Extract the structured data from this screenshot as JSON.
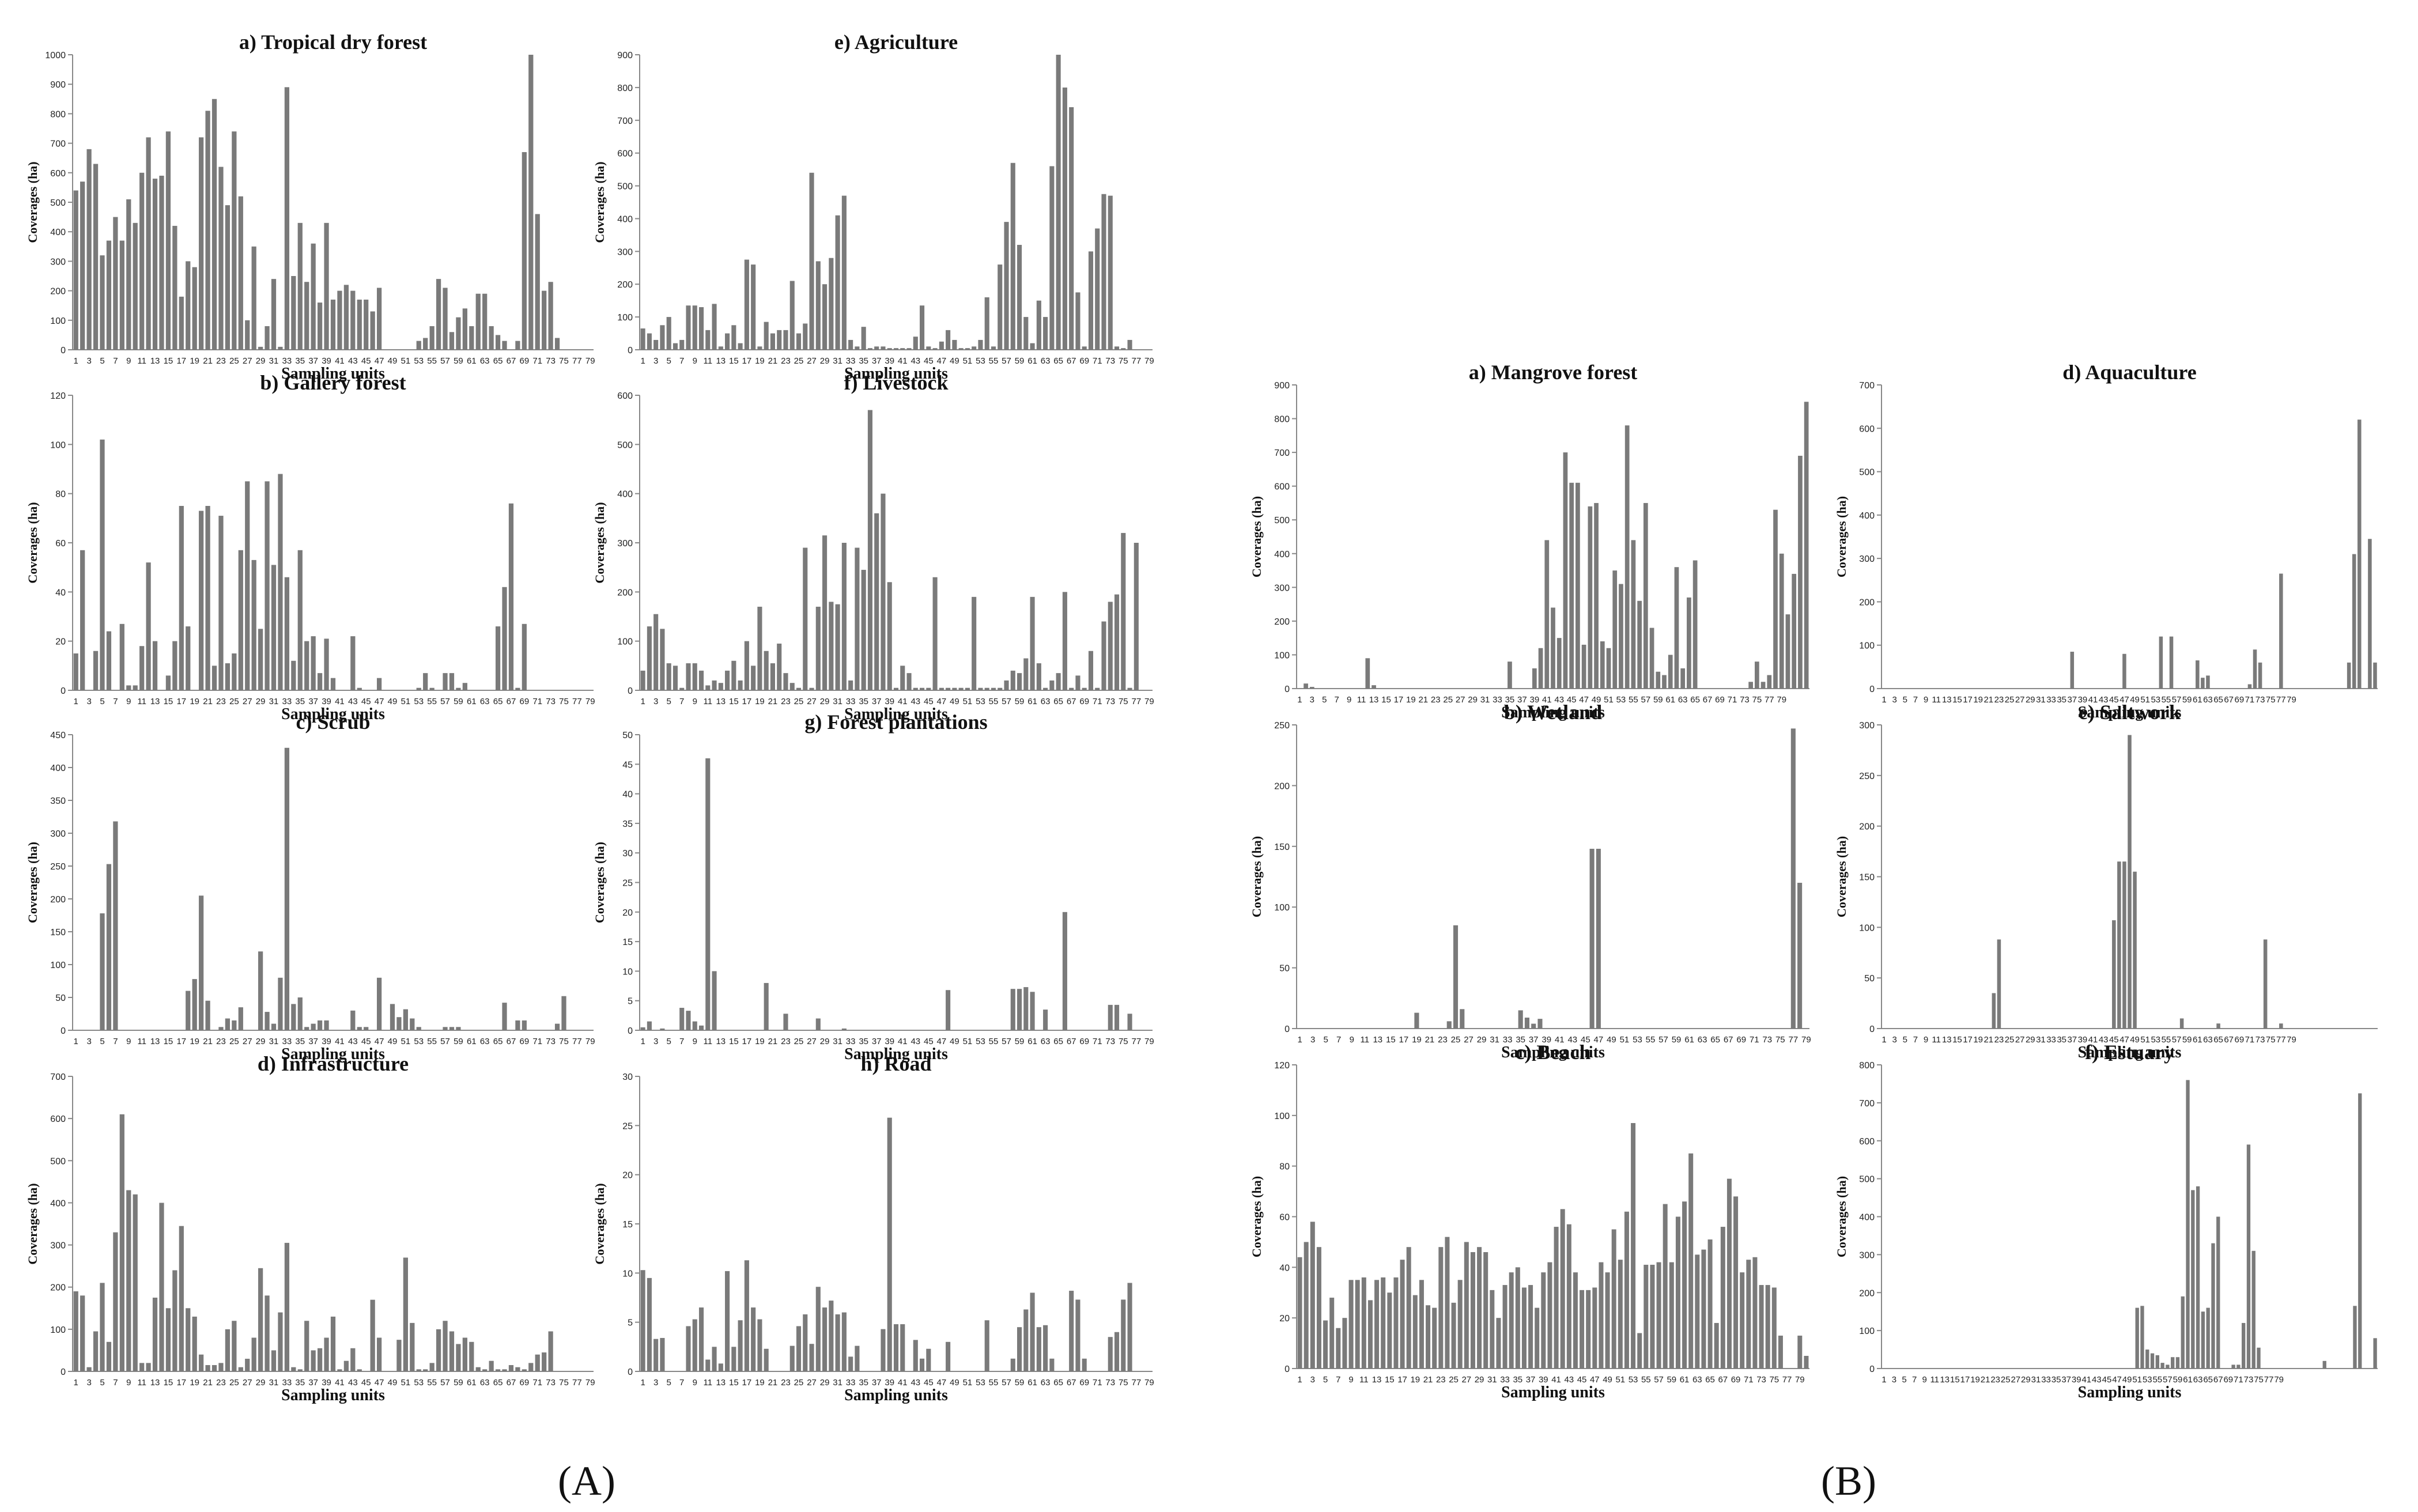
{
  "figure": {
    "panel_labels": [
      "(A)",
      "(B)"
    ],
    "bar_color": "#7a7a7a"
  },
  "chart_data": [
    {
      "id": "A-a",
      "type": "bar",
      "title": "a) Tropical dry forest",
      "xlabel": "Sampling units",
      "ylabel": "Coverages (ha)",
      "ylim": [
        0,
        1000
      ],
      "yticks": [
        0,
        100,
        200,
        300,
        400,
        500,
        600,
        700,
        800,
        900,
        1000
      ],
      "values": [
        540,
        570,
        680,
        630,
        320,
        370,
        450,
        370,
        510,
        430,
        600,
        720,
        580,
        590,
        740,
        420,
        180,
        300,
        280,
        720,
        810,
        850,
        620,
        490,
        740,
        520,
        100,
        350,
        10,
        80,
        240,
        10,
        890,
        250,
        430,
        230,
        360,
        160,
        430,
        170,
        200,
        220,
        200,
        170,
        170,
        130,
        210,
        0,
        0,
        0,
        0,
        0,
        30,
        40,
        80,
        240,
        210,
        60,
        110,
        140,
        80,
        190,
        190,
        80,
        50,
        30,
        0,
        30,
        670,
        1000,
        460,
        200,
        230,
        40,
        0,
        0,
        0,
        0,
        0
      ]
    },
    {
      "id": "A-b",
      "type": "bar",
      "title": "b) Gallery forest",
      "xlabel": "Sampling units",
      "ylabel": "Coverages (ha)",
      "ylim": [
        0,
        120
      ],
      "yticks": [
        0,
        20,
        40,
        60,
        80,
        100,
        120
      ],
      "values": [
        15,
        57,
        0,
        16,
        102,
        24,
        0,
        27,
        2,
        2,
        18,
        52,
        20,
        0,
        6,
        20,
        75,
        26,
        0,
        73,
        75,
        10,
        71,
        11,
        15,
        57,
        85,
        53,
        25,
        85,
        51,
        88,
        46,
        12,
        57,
        20,
        22,
        7,
        21,
        5,
        0,
        0,
        22,
        1,
        0,
        0,
        5,
        0,
        0,
        0,
        0,
        0,
        1,
        7,
        1,
        0,
        7,
        7,
        1,
        3,
        0,
        0,
        0,
        0,
        26,
        42,
        76,
        1,
        27,
        0,
        0,
        0,
        0,
        0,
        0,
        0,
        0,
        0,
        0
      ]
    },
    {
      "id": "A-c",
      "type": "bar",
      "title": "c) Scrub",
      "xlabel": "Sampling units",
      "ylabel": "Coverages (ha)",
      "ylim": [
        0,
        450
      ],
      "yticks": [
        0,
        50,
        100,
        150,
        200,
        250,
        300,
        350,
        400,
        450
      ],
      "values": [
        0,
        0,
        0,
        0,
        178,
        253,
        318,
        0,
        0,
        0,
        0,
        0,
        0,
        0,
        0,
        0,
        0,
        60,
        78,
        205,
        45,
        0,
        5,
        18,
        15,
        35,
        0,
        0,
        120,
        28,
        10,
        80,
        430,
        40,
        50,
        5,
        10,
        15,
        15,
        0,
        0,
        0,
        30,
        5,
        5,
        0,
        80,
        0,
        40,
        20,
        32,
        18,
        5,
        0,
        0,
        0,
        5,
        5,
        5,
        0,
        0,
        0,
        0,
        0,
        0,
        42,
        0,
        15,
        15,
        0,
        0,
        0,
        0,
        10,
        52,
        0,
        0,
        0,
        0
      ]
    },
    {
      "id": "A-d",
      "type": "bar",
      "title": "d) Infrastructure",
      "xlabel": "Sampling units",
      "ylabel": "Coverages (ha)",
      "ylim": [
        0,
        700
      ],
      "yticks": [
        0,
        100,
        200,
        300,
        400,
        500,
        600,
        700
      ],
      "values": [
        190,
        180,
        10,
        95,
        210,
        70,
        330,
        610,
        430,
        420,
        20,
        20,
        175,
        400,
        150,
        240,
        345,
        150,
        130,
        40,
        15,
        15,
        20,
        100,
        120,
        10,
        30,
        80,
        245,
        180,
        50,
        140,
        305,
        10,
        5,
        120,
        50,
        55,
        80,
        130,
        5,
        25,
        55,
        5,
        0,
        170,
        80,
        0,
        0,
        75,
        270,
        115,
        5,
        5,
        20,
        100,
        120,
        95,
        65,
        80,
        70,
        10,
        5,
        25,
        5,
        5,
        15,
        10,
        5,
        20,
        40,
        45,
        95,
        0,
        0,
        0,
        0,
        0,
        0
      ]
    },
    {
      "id": "A-e",
      "type": "bar",
      "title": "e) Agriculture",
      "xlabel": "Sampling units",
      "ylabel": "Coverages (ha)",
      "ylim": [
        0,
        900
      ],
      "yticks": [
        0,
        100,
        200,
        300,
        400,
        500,
        600,
        700,
        800,
        900
      ],
      "values": [
        65,
        50,
        30,
        75,
        100,
        20,
        30,
        135,
        135,
        130,
        60,
        140,
        10,
        50,
        75,
        20,
        275,
        260,
        10,
        85,
        50,
        60,
        60,
        210,
        50,
        80,
        540,
        270,
        200,
        280,
        410,
        470,
        30,
        10,
        70,
        5,
        10,
        10,
        5,
        5,
        5,
        5,
        40,
        135,
        10,
        5,
        25,
        60,
        30,
        5,
        5,
        10,
        30,
        160,
        10,
        260,
        390,
        570,
        320,
        100,
        20,
        150,
        100,
        560,
        900,
        800,
        740,
        175,
        10,
        300,
        370,
        475,
        470,
        10,
        5,
        30,
        0,
        0,
        0
      ]
    },
    {
      "id": "A-f",
      "type": "bar",
      "title": "f) Livestock",
      "xlabel": "Sampling units",
      "ylabel": "Coverages (ha)",
      "ylim": [
        0,
        600
      ],
      "yticks": [
        0,
        100,
        200,
        300,
        400,
        500,
        600
      ],
      "values": [
        40,
        130,
        155,
        125,
        55,
        50,
        5,
        55,
        55,
        40,
        10,
        20,
        15,
        40,
        60,
        20,
        100,
        50,
        170,
        80,
        55,
        95,
        35,
        15,
        5,
        290,
        5,
        170,
        315,
        180,
        175,
        300,
        20,
        290,
        245,
        570,
        360,
        400,
        220,
        5,
        50,
        35,
        5,
        5,
        5,
        230,
        5,
        5,
        5,
        5,
        5,
        190,
        5,
        5,
        5,
        5,
        20,
        40,
        35,
        65,
        190,
        55,
        5,
        20,
        35,
        200,
        5,
        30,
        5,
        80,
        5,
        140,
        180,
        195,
        320,
        5,
        300,
        0,
        0
      ]
    },
    {
      "id": "A-g",
      "type": "bar",
      "title": "g) Forest plantations",
      "xlabel": "Sampling units",
      "ylabel": "Coverages (ha)",
      "ylim": [
        0,
        50
      ],
      "yticks": [
        0,
        5,
        10,
        15,
        20,
        25,
        30,
        35,
        40,
        45,
        50
      ],
      "values": [
        0.5,
        1.5,
        0,
        0.3,
        0,
        0,
        3.8,
        3.3,
        1.5,
        0.8,
        46,
        10,
        0,
        0,
        0,
        0,
        0,
        0,
        0,
        8,
        0,
        0,
        2.8,
        0,
        0,
        0,
        0,
        2,
        0,
        0,
        0,
        0.3,
        0,
        0,
        0,
        0,
        0,
        0,
        0,
        0,
        0,
        0,
        0,
        0,
        0,
        0,
        0,
        6.8,
        0,
        0,
        0,
        0,
        0,
        0,
        0,
        0,
        0,
        7,
        7,
        7.3,
        6.5,
        0,
        3.5,
        0,
        0,
        20,
        0,
        0,
        0,
        0,
        0,
        0,
        4.3,
        4.3,
        0,
        2.8,
        0,
        0,
        0
      ]
    },
    {
      "id": "A-h",
      "type": "bar",
      "title": "h) Road",
      "xlabel": "Sampling units",
      "ylabel": "Coverages (ha)",
      "ylim": [
        0,
        30
      ],
      "yticks": [
        0,
        5,
        10,
        15,
        20,
        25,
        30
      ],
      "values": [
        10.3,
        9.5,
        3.3,
        3.4,
        0,
        0,
        0,
        4.6,
        5.3,
        6.5,
        1.2,
        2.5,
        0.8,
        10.2,
        2.5,
        5.2,
        11.3,
        6.5,
        5.3,
        2.3,
        0,
        0,
        0,
        2.6,
        4.6,
        5.8,
        2.8,
        8.6,
        6.5,
        7.2,
        5.8,
        6,
        1.5,
        2.6,
        0,
        0,
        0,
        4.3,
        25.8,
        4.8,
        4.8,
        0,
        3.2,
        1.3,
        2.3,
        0,
        0,
        3,
        0,
        0,
        0,
        0,
        0,
        5.2,
        0,
        0,
        0,
        1.3,
        4.5,
        6.3,
        8,
        4.5,
        4.7,
        1.3,
        0,
        0,
        8.2,
        7.3,
        1.3,
        0,
        0,
        0,
        3.5,
        4,
        7.3,
        9,
        0,
        0,
        0
      ]
    },
    {
      "id": "B-a",
      "type": "bar",
      "title": "a) Mangrove forest",
      "xlabel": "Sampling units",
      "ylabel": "Coverages (ha)",
      "ylim": [
        0,
        900
      ],
      "yticks": [
        0,
        100,
        200,
        300,
        400,
        500,
        600,
        700,
        800,
        900
      ],
      "values": [
        0,
        15,
        5,
        0,
        0,
        0,
        0,
        0,
        0,
        0,
        0,
        90,
        10,
        0,
        0,
        0,
        0,
        0,
        0,
        0,
        0,
        0,
        0,
        0,
        0,
        0,
        0,
        0,
        0,
        0,
        0,
        0,
        0,
        0,
        80,
        0,
        0,
        0,
        60,
        120,
        440,
        240,
        150,
        700,
        610,
        610,
        130,
        540,
        550,
        140,
        120,
        350,
        310,
        780,
        440,
        260,
        550,
        180,
        50,
        40,
        100,
        360,
        60,
        270,
        380,
        0,
        0,
        0,
        0,
        0,
        0,
        0,
        0,
        20,
        80,
        20,
        40,
        530,
        400,
        220,
        340,
        690,
        850
      ]
    },
    {
      "id": "B-b",
      "type": "bar",
      "title": "b) Wetland",
      "xlabel": "Sampling units",
      "ylabel": "Coverages (ha)",
      "ylim": [
        0,
        250
      ],
      "yticks": [
        0,
        50,
        100,
        150,
        200,
        250
      ],
      "values": [
        0,
        0,
        0,
        0,
        0,
        0,
        0,
        0,
        0,
        0,
        0,
        0,
        0,
        0,
        0,
        0,
        0,
        0,
        13,
        0,
        0,
        0,
        0,
        6,
        85,
        16,
        0,
        0,
        0,
        0,
        0,
        0,
        0,
        0,
        15,
        9,
        4,
        8,
        0,
        0,
        0,
        0,
        0,
        0,
        0,
        148,
        148,
        0,
        0,
        0,
        0,
        0,
        0,
        0,
        0,
        0,
        0,
        0,
        0,
        0,
        0,
        0,
        0,
        0,
        0,
        0,
        0,
        0,
        0,
        0,
        0,
        0,
        0,
        0,
        0,
        0,
        247,
        120,
        0
      ]
    },
    {
      "id": "B-c",
      "type": "bar",
      "title": "c) Beach",
      "xlabel": "Sampling units",
      "ylabel": "Coverages (ha)",
      "ylim": [
        0,
        120
      ],
      "yticks": [
        0,
        20,
        40,
        60,
        80,
        100,
        120
      ],
      "values": [
        44,
        50,
        58,
        48,
        19,
        28,
        16,
        20,
        35,
        35,
        36,
        27,
        35,
        36,
        30,
        36,
        43,
        48,
        29,
        35,
        25,
        24,
        48,
        52,
        26,
        35,
        50,
        46,
        48,
        46,
        31,
        20,
        33,
        38,
        40,
        32,
        33,
        24,
        38,
        42,
        56,
        63,
        57,
        38,
        31,
        31,
        32,
        42,
        38,
        55,
        43,
        62,
        97,
        14,
        41,
        41,
        42,
        65,
        42,
        60,
        66,
        85,
        45,
        47,
        51,
        18,
        56,
        75,
        68,
        38,
        43,
        44,
        33,
        33,
        32,
        13,
        0,
        0,
        13,
        5
      ]
    },
    {
      "id": "B-d",
      "type": "bar",
      "title": "d) Aquaculture",
      "xlabel": "Sampling units",
      "ylabel": "Coverages (ha)",
      "ylim": [
        0,
        700
      ],
      "yticks": [
        0,
        100,
        200,
        300,
        400,
        500,
        600,
        700
      ],
      "values": [
        0,
        0,
        0,
        0,
        0,
        0,
        0,
        0,
        0,
        0,
        0,
        0,
        0,
        0,
        0,
        0,
        0,
        0,
        0,
        0,
        0,
        0,
        0,
        0,
        0,
        0,
        0,
        0,
        0,
        0,
        0,
        0,
        0,
        0,
        0,
        0,
        85,
        0,
        0,
        0,
        0,
        0,
        0,
        0,
        0,
        0,
        80,
        0,
        0,
        0,
        0,
        0,
        0,
        120,
        0,
        120,
        0,
        0,
        0,
        0,
        65,
        25,
        30,
        0,
        0,
        0,
        0,
        0,
        0,
        0,
        10,
        90,
        60,
        0,
        0,
        0,
        265,
        0,
        0,
        0,
        0,
        0,
        0,
        0,
        0,
        0,
        0,
        0,
        0,
        60,
        310,
        620,
        0,
        345,
        60
      ]
    },
    {
      "id": "B-e",
      "type": "bar",
      "title": "e) Saltwork",
      "xlabel": "Sampling units",
      "ylabel": "Coverages (ha)",
      "ylim": [
        0,
        300
      ],
      "yticks": [
        0,
        50,
        100,
        150,
        200,
        250,
        300
      ],
      "values": [
        0,
        0,
        0,
        0,
        0,
        0,
        0,
        0,
        0,
        0,
        0,
        0,
        0,
        0,
        0,
        0,
        0,
        0,
        0,
        0,
        0,
        35,
        88,
        0,
        0,
        0,
        0,
        0,
        0,
        0,
        0,
        0,
        0,
        0,
        0,
        0,
        0,
        0,
        0,
        0,
        0,
        0,
        0,
        0,
        107,
        165,
        165,
        290,
        155,
        0,
        0,
        0,
        0,
        0,
        0,
        0,
        0,
        10,
        0,
        0,
        0,
        0,
        0,
        0,
        5,
        0,
        0,
        0,
        0,
        0,
        0,
        0,
        0,
        88,
        0,
        0,
        5,
        0,
        0,
        0,
        0,
        0,
        0,
        0,
        0,
        0,
        0,
        0,
        0,
        0,
        0,
        0,
        0,
        0,
        0
      ]
    },
    {
      "id": "B-f",
      "type": "bar",
      "title": "f) Estuary",
      "xlabel": "Sampling units",
      "ylabel": "Coverages (ha)",
      "ylim": [
        0,
        800
      ],
      "yticks": [
        0,
        100,
        200,
        300,
        400,
        500,
        600,
        700,
        800
      ],
      "values": [
        0,
        0,
        0,
        0,
        0,
        0,
        0,
        0,
        0,
        0,
        0,
        0,
        0,
        0,
        0,
        0,
        0,
        0,
        0,
        0,
        0,
        0,
        0,
        0,
        0,
        0,
        0,
        0,
        0,
        0,
        0,
        0,
        0,
        0,
        0,
        0,
        0,
        0,
        0,
        0,
        0,
        0,
        0,
        0,
        0,
        0,
        0,
        0,
        0,
        0,
        160,
        165,
        50,
        40,
        35,
        15,
        10,
        30,
        30,
        190,
        760,
        470,
        480,
        150,
        160,
        330,
        400,
        0,
        0,
        10,
        10,
        120,
        590,
        310,
        55,
        0,
        0,
        0,
        0,
        0,
        0,
        0,
        0,
        0,
        0,
        0,
        0,
        20,
        0,
        0,
        0,
        0,
        0,
        165,
        725,
        0,
        0,
        80
      ]
    }
  ]
}
